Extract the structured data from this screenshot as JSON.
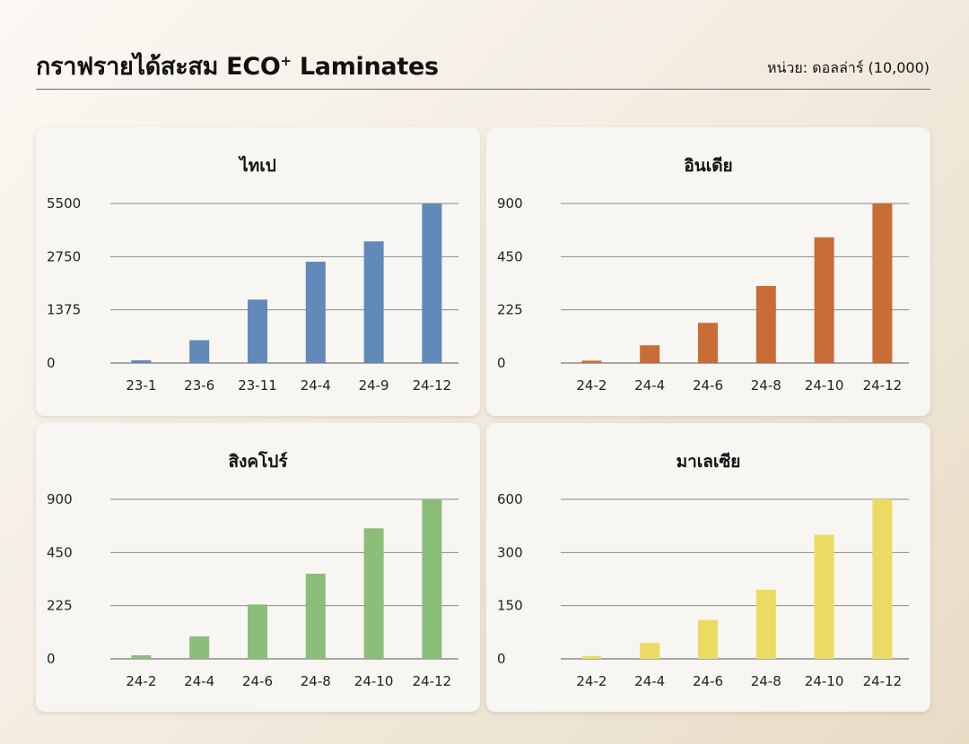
{
  "header": {
    "title": "กราฟรายได้สะสม ECO",
    "title_sup": "+",
    "title_tail": " Laminates",
    "unit": "หน่วย: ดอลล่าร์ (10,000)"
  },
  "chart_data": [
    {
      "type": "bar",
      "title": "ไทเป",
      "categories": [
        "23-1",
        "23-6",
        "23-11",
        "24-4",
        "24-9",
        "24-12"
      ],
      "values": [
        70,
        590,
        1640,
        2620,
        3540,
        5500
      ],
      "ticks": [
        0,
        1375,
        2750,
        5500
      ],
      "tick_labels": [
        "0",
        "1375",
        "2750",
        "5500"
      ],
      "ylim": [
        0,
        5500
      ],
      "grid": true,
      "color": "#6189ba"
    },
    {
      "type": "bar",
      "title": "อินเดีย",
      "categories": [
        "24-2",
        "24-4",
        "24-6",
        "24-8",
        "24-10",
        "24-12"
      ],
      "values": [
        10,
        75,
        170,
        326,
        614,
        900
      ],
      "ticks": [
        0,
        225,
        450,
        900
      ],
      "tick_labels": [
        "0",
        "225",
        "450",
        "900"
      ],
      "ylim": [
        0,
        900
      ],
      "grid": true,
      "color": "#c96c36"
    },
    {
      "type": "bar",
      "title": "สิงคโปร์",
      "categories": [
        "24-2",
        "24-4",
        "24-6",
        "24-8",
        "24-10",
        "24-12"
      ],
      "values": [
        15,
        95,
        230,
        360,
        655,
        900
      ],
      "ticks": [
        0,
        225,
        450,
        900
      ],
      "tick_labels": [
        "0",
        "225",
        "450",
        "900"
      ],
      "ylim": [
        0,
        900
      ],
      "grid": true,
      "color": "#8bbd7b"
    },
    {
      "type": "bar",
      "title": "มาเลเซีย",
      "categories": [
        "24-2",
        "24-4",
        "24-6",
        "24-8",
        "24-10",
        "24-12"
      ],
      "values": [
        8,
        45,
        110,
        195,
        400,
        600
      ],
      "ticks": [
        0,
        150,
        300,
        600
      ],
      "tick_labels": [
        "0",
        "150",
        "300",
        "600"
      ],
      "ylim": [
        0,
        600
      ],
      "grid": true,
      "color": "#ecdb63"
    }
  ]
}
